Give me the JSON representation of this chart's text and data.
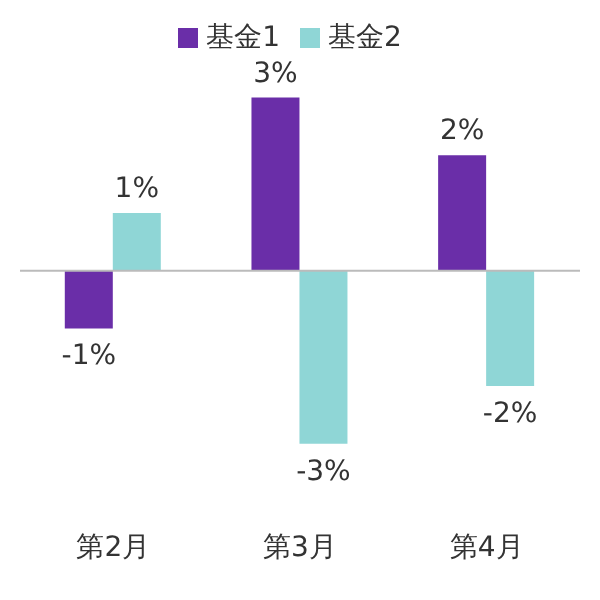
{
  "chart_data": {
    "type": "bar",
    "categories": [
      "第2月",
      "第3月",
      "第4月"
    ],
    "series": [
      {
        "name": "基金1",
        "color": "#6a2ea8",
        "values": [
          -1,
          3,
          2
        ],
        "value_labels": [
          "-1%",
          "3%",
          "2%"
        ]
      },
      {
        "name": "基金2",
        "color": "#8fd6d6",
        "values": [
          1,
          -3,
          -2
        ],
        "value_labels": [
          "1%",
          "-3%",
          "-2%"
        ]
      }
    ],
    "legend": "top",
    "grid": false
  }
}
